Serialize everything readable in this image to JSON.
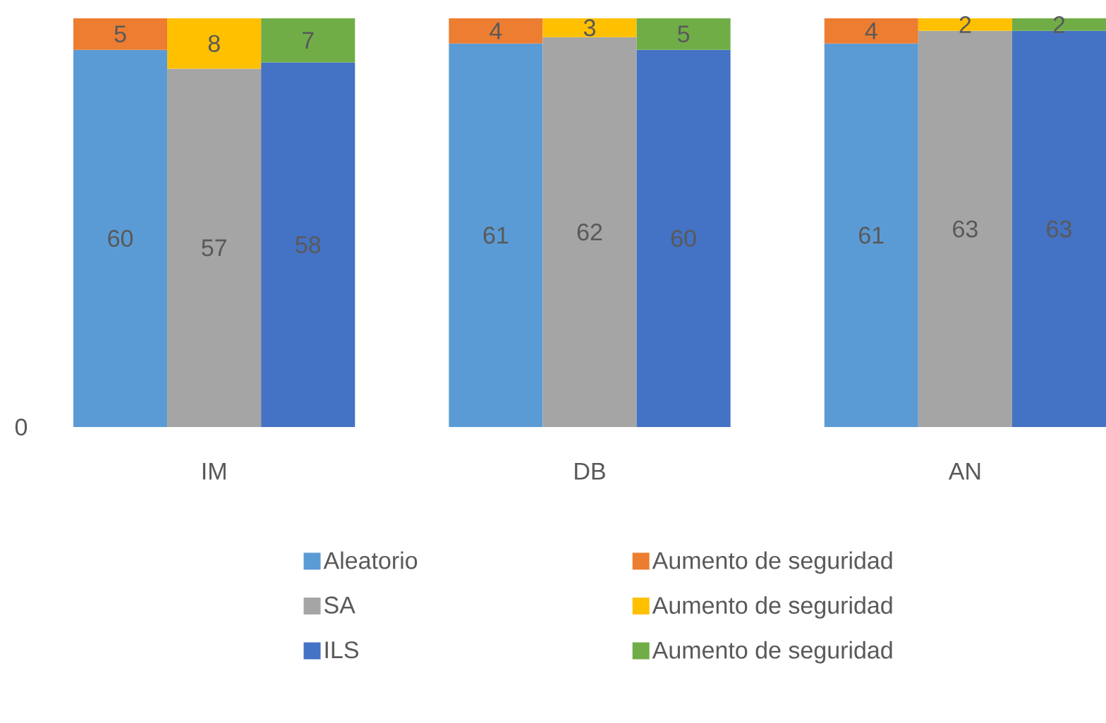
{
  "chart_data": {
    "type": "bar",
    "stacked": true,
    "data_labels": true,
    "legend": "bottom",
    "categories": [
      null,
      "IM",
      null,
      null,
      null,
      "DB",
      null,
      null,
      null,
      "AN",
      null
    ],
    "annotations": [
      "0"
    ],
    "series": [
      {
        "name": "Aleatorio",
        "color": "#5b9bd5",
        "values": [
          60,
          null,
          null,
          null,
          61,
          null,
          null,
          null,
          61,
          null,
          null
        ]
      },
      {
        "name": "Aumento de seguridad",
        "color": "#ed7d31",
        "values": [
          5,
          null,
          null,
          null,
          4,
          null,
          null,
          null,
          4,
          null,
          null
        ]
      },
      {
        "name": "SA",
        "color": "#a5a5a5",
        "values": [
          null,
          57,
          null,
          null,
          null,
          62,
          null,
          null,
          null,
          63,
          null
        ]
      },
      {
        "name": "Aumento de seguridad",
        "color": "#ffc000",
        "values": [
          null,
          8,
          null,
          null,
          null,
          3,
          null,
          null,
          null,
          2,
          null
        ]
      },
      {
        "name": "ILS",
        "color": "#4472c4",
        "values": [
          null,
          null,
          58,
          null,
          null,
          null,
          60,
          null,
          null,
          null,
          63
        ]
      },
      {
        "name": "Aumento de seguridad",
        "color": "#70ad47",
        "values": [
          null,
          null,
          7,
          null,
          null,
          null,
          5,
          null,
          null,
          null,
          2
        ]
      }
    ]
  }
}
